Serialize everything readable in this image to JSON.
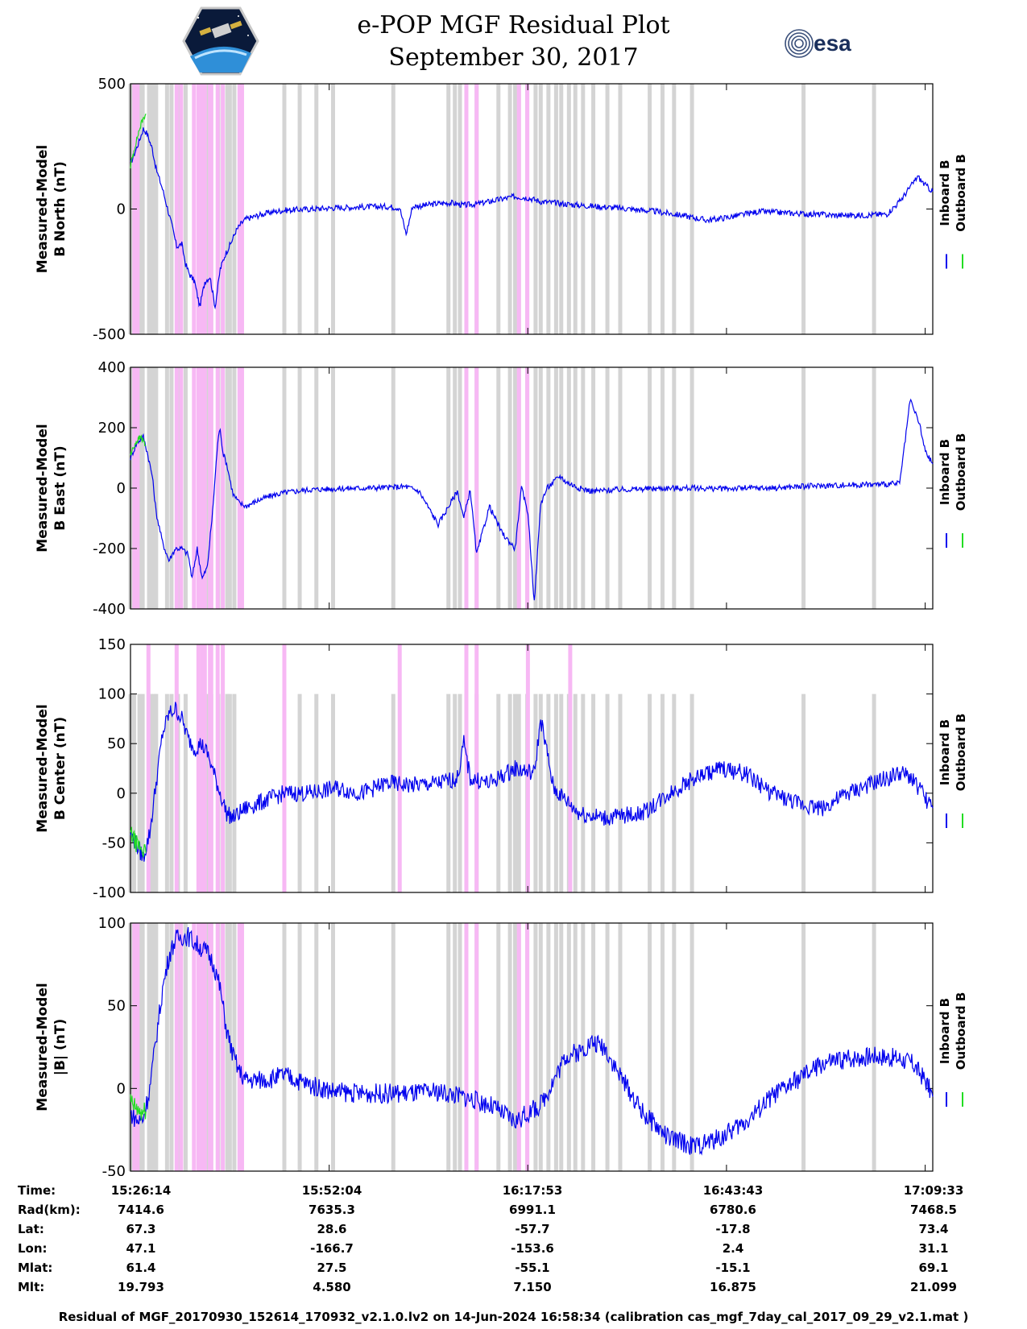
{
  "header": {
    "title": "e-POP MGF Residual Plot",
    "date": "September 30, 2017",
    "left_logo": "cassiope-mission-patch",
    "right_logo": "esa-logo",
    "right_logo_text": "esa"
  },
  "legend": {
    "inboard": "Inboard B",
    "outboard": "Outboard B"
  },
  "colors": {
    "inboard": "#0000ee",
    "outboard": "#22dd22",
    "gray_band": "#d4d4d4",
    "pink_band": "#f7b8f4"
  },
  "chart_data": [
    {
      "type": "line",
      "id": "north",
      "ylabel": [
        "Measured-Model",
        "B North (nT)"
      ],
      "ylim": [
        -500,
        500
      ],
      "yticks": [
        -500,
        0,
        500
      ],
      "xlim": [
        0,
        6258
      ],
      "series": [
        {
          "name": "Inboard B",
          "x": [
            0,
            60,
            100,
            130,
            170,
            200,
            250,
            300,
            330,
            360,
            400,
            430,
            460,
            500,
            540,
            580,
            620,
            660,
            700,
            740,
            780,
            820,
            860,
            900,
            1000,
            1100,
            1200,
            1400,
            1600,
            1800,
            2000,
            2100,
            2150,
            2200,
            2300,
            2400,
            2500,
            2600,
            2700,
            2800,
            2900,
            3000,
            3100,
            3200,
            3300,
            3500,
            3700,
            3900,
            4100,
            4300,
            4500,
            4700,
            4900,
            5100,
            5300,
            5500,
            5700,
            5900,
            6000,
            6100,
            6140,
            6200,
            6258
          ],
          "y": [
            180,
            260,
            320,
            300,
            240,
            160,
            80,
            -20,
            -80,
            -150,
            -140,
            -220,
            -260,
            -290,
            -390,
            -290,
            -270,
            -390,
            -240,
            -180,
            -140,
            -90,
            -60,
            -40,
            -25,
            -12,
            -5,
            0,
            5,
            8,
            10,
            5,
            -100,
            10,
            15,
            22,
            25,
            15,
            20,
            30,
            40,
            50,
            45,
            30,
            25,
            15,
            8,
            0,
            -10,
            -25,
            -45,
            -30,
            -10,
            -15,
            -20,
            -25,
            -25,
            -20,
            30,
            100,
            130,
            95,
            70
          ]
        },
        {
          "name": "Outboard B",
          "x": [
            0,
            30,
            60,
            90,
            120
          ],
          "y": [
            170,
            240,
            300,
            350,
            380
          ]
        }
      ],
      "gray_bands": [
        0,
        15,
        28,
        70,
        95,
        145,
        160,
        185,
        200,
        285,
        320,
        370,
        430,
        560,
        595,
        630,
        685,
        755,
        775,
        810,
        1200,
        1320,
        1450,
        1580,
        2050,
        2480,
        2530,
        2570,
        2620,
        2700,
        2870,
        2960,
        3000,
        3030,
        3095,
        3160,
        3200,
        3260,
        3320,
        3360,
        3420,
        3470,
        3530,
        3610,
        3720,
        3820,
        4050,
        4150,
        4240,
        4380,
        5250,
        5800
      ],
      "pink_bands": [
        30,
        40,
        55,
        360,
        395,
        495,
        530,
        560,
        580,
        620,
        630,
        680,
        720,
        850,
        870,
        2620,
        2700,
        3030,
        3095
      ]
    },
    {
      "type": "line",
      "id": "east",
      "ylabel": [
        "Measured-Model",
        "B East (nT)"
      ],
      "ylim": [
        -400,
        400
      ],
      "yticks": [
        -400,
        -200,
        0,
        200,
        400
      ],
      "xlim": [
        0,
        6258
      ],
      "series": [
        {
          "name": "Inboard B",
          "x": [
            0,
            50,
            100,
            130,
            170,
            200,
            250,
            300,
            350,
            400,
            450,
            480,
            520,
            560,
            600,
            640,
            680,
            700,
            720,
            750,
            800,
            850,
            900,
            1000,
            1100,
            1200,
            1400,
            1600,
            1800,
            2000,
            2150,
            2250,
            2400,
            2550,
            2600,
            2650,
            2700,
            2800,
            2900,
            3000,
            3050,
            3100,
            3150,
            3200,
            3250,
            3300,
            3350,
            3400,
            3500,
            3600,
            3700,
            3800,
            4000,
            4200,
            4400,
            4600,
            4800,
            5000,
            5200,
            5400,
            5600,
            5800,
            6000,
            6050,
            6080,
            6100,
            6150,
            6200,
            6258
          ],
          "y": [
            100,
            150,
            170,
            120,
            40,
            -80,
            -180,
            -240,
            -200,
            -200,
            -220,
            -300,
            -200,
            -300,
            -260,
            -80,
            150,
            200,
            120,
            80,
            -20,
            -50,
            -60,
            -40,
            -25,
            -15,
            -5,
            -2,
            0,
            2,
            5,
            -10,
            -120,
            -10,
            -100,
            -5,
            -220,
            -60,
            -150,
            -200,
            0,
            -80,
            -380,
            -50,
            0,
            20,
            40,
            20,
            0,
            -10,
            -8,
            -5,
            -3,
            0,
            0,
            -2,
            0,
            0,
            5,
            8,
            10,
            12,
            15,
            180,
            290,
            270,
            220,
            120,
            80
          ]
        },
        {
          "name": "Outboard B",
          "x": [
            0,
            40,
            80,
            120
          ],
          "y": [
            110,
            150,
            170,
            140
          ]
        }
      ],
      "gray_bands": [
        0,
        15,
        28,
        70,
        95,
        145,
        160,
        185,
        200,
        285,
        320,
        370,
        430,
        560,
        595,
        630,
        685,
        755,
        775,
        810,
        1200,
        1320,
        1450,
        1580,
        2050,
        2480,
        2530,
        2570,
        2620,
        2700,
        2870,
        2960,
        3000,
        3030,
        3095,
        3160,
        3200,
        3260,
        3320,
        3360,
        3420,
        3470,
        3530,
        3610,
        3720,
        3820,
        4050,
        4150,
        4240,
        4380,
        5250,
        5800
      ],
      "pink_bands": [
        30,
        40,
        55,
        360,
        395,
        495,
        530,
        560,
        580,
        620,
        630,
        680,
        720,
        850,
        870,
        2620,
        2700,
        3030,
        3095
      ]
    },
    {
      "type": "line",
      "id": "center",
      "ylabel": [
        "Measured-Model",
        "B Center (nT)"
      ],
      "ylim": [
        -100,
        150
      ],
      "yticks": [
        -100,
        -50,
        0,
        50,
        100,
        150
      ],
      "xlim": [
        0,
        6258
      ],
      "series": [
        {
          "name": "Inboard B",
          "x": [
            0,
            60,
            100,
            150,
            200,
            250,
            300,
            350,
            400,
            450,
            500,
            550,
            600,
            650,
            700,
            750,
            800,
            850,
            900,
            1000,
            1100,
            1200,
            1400,
            1600,
            1800,
            2000,
            2200,
            2400,
            2550,
            2600,
            2650,
            2800,
            3000,
            3150,
            3200,
            3300,
            3500,
            3700,
            4000,
            4200,
            4400,
            4600,
            4800,
            5000,
            5200,
            5400,
            5600,
            5800,
            6000,
            6100,
            6200,
            6258
          ],
          "y": [
            -40,
            -55,
            -65,
            -40,
            10,
            60,
            80,
            85,
            75,
            55,
            45,
            50,
            40,
            20,
            0,
            -20,
            -25,
            -20,
            -15,
            -10,
            -5,
            0,
            0,
            5,
            0,
            10,
            8,
            10,
            15,
            50,
            15,
            10,
            25,
            20,
            75,
            5,
            -20,
            -25,
            -20,
            0,
            15,
            25,
            20,
            0,
            -10,
            -15,
            0,
            10,
            20,
            15,
            -5,
            -15
          ]
        },
        {
          "name": "Outboard B",
          "x": [
            0,
            40,
            80,
            120
          ],
          "y": [
            -40,
            -50,
            -55,
            -60
          ]
        }
      ],
      "gray_bands": [
        0,
        15,
        28,
        70,
        95,
        145,
        160,
        185,
        200,
        285,
        320,
        370,
        430,
        560,
        595,
        630,
        685,
        755,
        775,
        810,
        1200,
        1320,
        1450,
        1580,
        2050,
        2480,
        2530,
        2570,
        2620,
        2700,
        2870,
        2960,
        3000,
        3030,
        3095,
        3160,
        3200,
        3260,
        3320,
        3360,
        3420,
        3470,
        3530,
        3610,
        3720,
        3820,
        4050,
        4150,
        4240,
        4380,
        5250,
        5800
      ],
      "pink_bands": [
        140,
        360,
        530,
        560,
        580,
        620,
        630,
        680,
        720,
        1200,
        2100,
        2620,
        2700,
        3100,
        3430
      ]
    },
    {
      "type": "line",
      "id": "magnitude",
      "ylabel": [
        "Measured-Model",
        "|B| (nT)"
      ],
      "ylim": [
        -50,
        100
      ],
      "yticks": [
        -50,
        0,
        50,
        100
      ],
      "xlim": [
        0,
        6258
      ],
      "series": [
        {
          "name": "Inboard B",
          "x": [
            0,
            60,
            100,
            150,
            200,
            250,
            300,
            350,
            400,
            450,
            500,
            550,
            600,
            650,
            700,
            750,
            800,
            850,
            900,
            1000,
            1100,
            1200,
            1300,
            1400,
            1500,
            1600,
            1800,
            2000,
            2200,
            2400,
            2600,
            2800,
            3000,
            3100,
            3200,
            3300,
            3400,
            3500,
            3600,
            3700,
            3800,
            4000,
            4200,
            4400,
            4600,
            4800,
            5000,
            5200,
            5400,
            5600,
            5800,
            6000,
            6100,
            6200,
            6258
          ],
          "y": [
            -15,
            -20,
            -18,
            0,
            30,
            60,
            80,
            90,
            92,
            92,
            88,
            85,
            82,
            75,
            60,
            35,
            20,
            10,
            5,
            5,
            6,
            8,
            5,
            2,
            0,
            -2,
            -3,
            -3,
            -3,
            -2,
            -5,
            -10,
            -20,
            -15,
            -10,
            5,
            20,
            22,
            28,
            25,
            10,
            -15,
            -30,
            -35,
            -30,
            -20,
            -5,
            5,
            15,
            18,
            20,
            18,
            15,
            5,
            -5
          ]
        },
        {
          "name": "Outboard B",
          "x": [
            0,
            40,
            80,
            120
          ],
          "y": [
            -8,
            -12,
            -15,
            -14
          ]
        }
      ],
      "gray_bands": [
        0,
        15,
        28,
        70,
        95,
        145,
        160,
        185,
        200,
        285,
        320,
        370,
        430,
        560,
        595,
        630,
        685,
        755,
        775,
        810,
        1200,
        1320,
        1450,
        1580,
        2050,
        2480,
        2530,
        2570,
        2620,
        2700,
        2870,
        2960,
        3000,
        3030,
        3095,
        3160,
        3200,
        3260,
        3320,
        3360,
        3420,
        3470,
        3530,
        3610,
        3720,
        3820,
        4050,
        4150,
        4240,
        4380,
        5250,
        5800
      ],
      "pink_bands": [
        30,
        40,
        55,
        360,
        395,
        495,
        530,
        560,
        580,
        620,
        630,
        680,
        720,
        850,
        870,
        2620,
        2700,
        3030,
        3095
      ]
    }
  ],
  "x_tick_positions": [
    0,
    1550,
    3099,
    4649,
    6199
  ],
  "table": {
    "rows": [
      {
        "label": "Time:",
        "values": [
          "15:26:14",
          "15:52:04",
          "16:17:53",
          "16:43:43",
          "17:09:33"
        ]
      },
      {
        "label": "Rad(km):",
        "values": [
          "7414.6",
          "7635.3",
          "6991.1",
          "6780.6",
          "7468.5"
        ]
      },
      {
        "label": "Lat:",
        "values": [
          "67.3",
          "28.6",
          "-57.7",
          "-17.8",
          "73.4"
        ]
      },
      {
        "label": "Lon:",
        "values": [
          "47.1",
          "-166.7",
          "-153.6",
          "2.4",
          "31.1"
        ]
      },
      {
        "label": "Mlat:",
        "values": [
          "61.4",
          "27.5",
          "-55.1",
          "-15.1",
          "69.1"
        ]
      },
      {
        "label": "Mlt:",
        "values": [
          "19.793",
          "4.580",
          "7.150",
          "16.875",
          "21.099"
        ]
      }
    ]
  },
  "footer": "Residual of MGF_20170930_152614_170932_v2.1.0.lv2 on 14-Jun-2024 16:58:34 (calibration cas_mgf_7day_cal_2017_09_29_v2.1.mat )"
}
